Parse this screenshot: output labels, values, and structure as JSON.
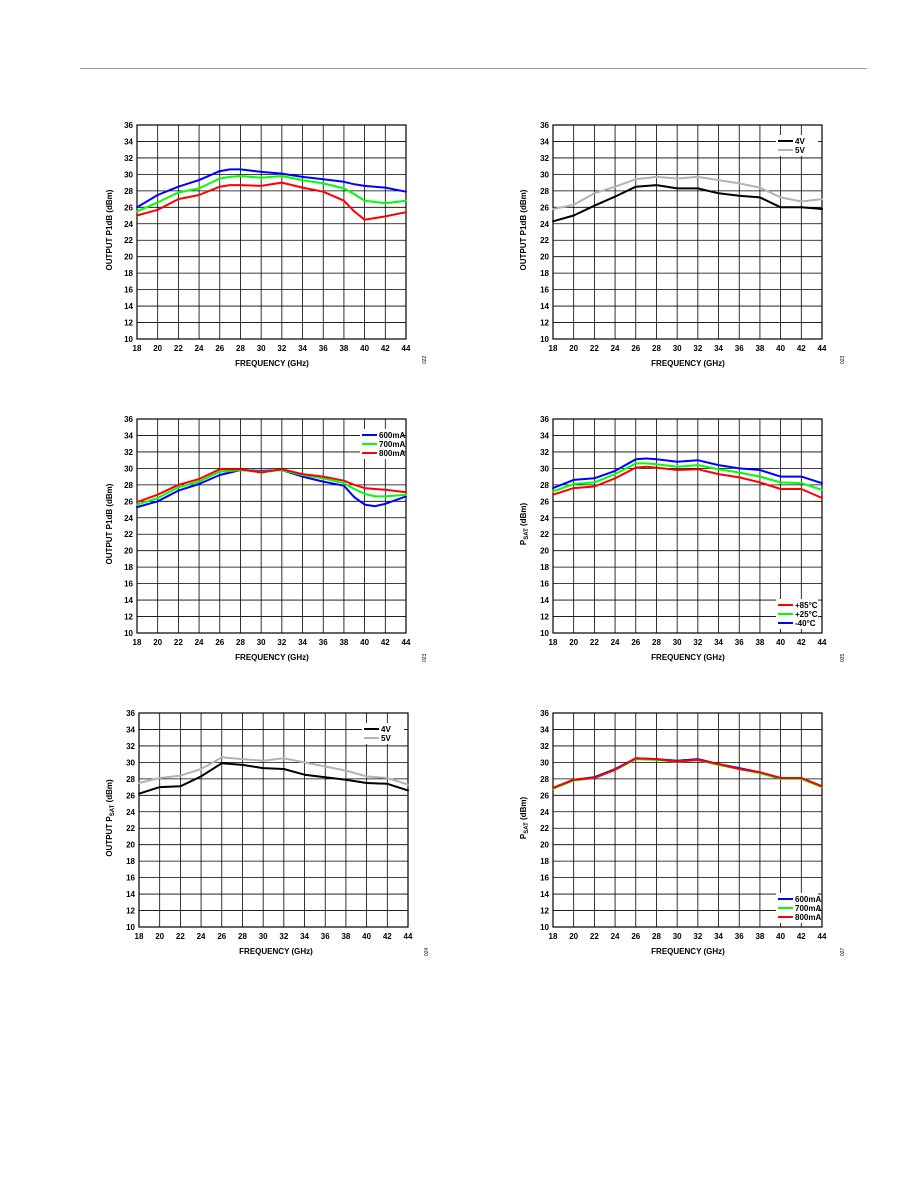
{
  "page": {
    "rule_color": "#9a9a9a"
  },
  "chart_data": [
    {
      "id": "c1",
      "type": "line",
      "xlabel": "FREQUENCY (GHz)",
      "ylabel": "OUTPUT P1dB (dBm)",
      "xlim": [
        18,
        44
      ],
      "ylim": [
        10,
        36
      ],
      "xstep": 2,
      "ystep": 2,
      "grid": true,
      "fig_id": "022",
      "legend": null,
      "x": [
        18,
        20,
        22,
        24,
        26,
        27,
        28,
        30,
        32,
        34,
        36,
        38,
        39,
        40,
        42,
        44
      ],
      "series": [
        {
          "color": "#0000ff",
          "values": [
            26.0,
            27.5,
            28.5,
            29.3,
            30.4,
            30.6,
            30.6,
            30.3,
            30.1,
            29.7,
            29.4,
            29.1,
            28.8,
            28.6,
            28.4,
            27.9
          ]
        },
        {
          "color": "#00ff00",
          "values": [
            25.5,
            26.6,
            27.8,
            28.3,
            29.5,
            29.7,
            29.8,
            29.6,
            29.8,
            29.3,
            28.9,
            28.3,
            27.6,
            26.8,
            26.5,
            26.8
          ]
        },
        {
          "color": "#ff0000",
          "values": [
            25.0,
            25.7,
            27.0,
            27.5,
            28.5,
            28.7,
            28.7,
            28.6,
            29.0,
            28.4,
            27.9,
            26.8,
            25.5,
            24.5,
            24.9,
            25.4
          ]
        }
      ]
    },
    {
      "id": "c2",
      "type": "line",
      "xlabel": "FREQUENCY (GHz)",
      "ylabel": "OUTPUT P1dB (dBm)",
      "xlim": [
        18,
        44
      ],
      "ylim": [
        10,
        36
      ],
      "xstep": 2,
      "ystep": 2,
      "grid": true,
      "fig_id": "023",
      "legend": "top-right",
      "x": [
        18,
        20,
        22,
        24,
        26,
        28,
        30,
        32,
        34,
        36,
        38,
        40,
        42,
        44
      ],
      "series": [
        {
          "name": "4V",
          "color": "#000000",
          "values": [
            24.3,
            25.0,
            26.2,
            27.3,
            28.5,
            28.7,
            28.3,
            28.3,
            27.7,
            27.4,
            27.2,
            26.0,
            26.0,
            25.8
          ]
        },
        {
          "name": "5V",
          "color": "#b3b3b3",
          "values": [
            25.8,
            26.3,
            27.7,
            28.5,
            29.4,
            29.7,
            29.5,
            29.7,
            29.3,
            28.9,
            28.4,
            27.2,
            26.7,
            27.0
          ]
        }
      ]
    },
    {
      "id": "c3",
      "type": "line",
      "xlabel": "FREQUENCY (GHz)",
      "ylabel": "OUTPUT P1dB (dBm)",
      "xlim": [
        18,
        44
      ],
      "ylim": [
        10,
        36
      ],
      "xstep": 2,
      "ystep": 2,
      "grid": true,
      "fig_id": "023",
      "legend": "top-right",
      "x": [
        18,
        20,
        22,
        24,
        26,
        28,
        30,
        32,
        34,
        36,
        38,
        39,
        40,
        41,
        42,
        44
      ],
      "series": [
        {
          "name": "600mA",
          "color": "#0000ff",
          "values": [
            25.3,
            26.0,
            27.3,
            28.1,
            29.2,
            29.8,
            29.7,
            29.8,
            29.0,
            28.4,
            27.9,
            26.5,
            25.6,
            25.4,
            25.7,
            26.6
          ]
        },
        {
          "name": "700mA",
          "color": "#00ff00",
          "values": [
            25.6,
            26.4,
            27.7,
            28.4,
            29.6,
            29.8,
            29.6,
            29.8,
            29.2,
            28.8,
            28.2,
            27.5,
            26.9,
            26.6,
            26.6,
            26.8
          ]
        },
        {
          "name": "800mA",
          "color": "#ff0000",
          "values": [
            25.9,
            26.8,
            28.0,
            28.7,
            29.9,
            29.9,
            29.5,
            29.9,
            29.3,
            29.0,
            28.5,
            28.0,
            27.6,
            27.5,
            27.4,
            27.1
          ]
        }
      ]
    },
    {
      "id": "c4",
      "type": "line",
      "xlabel": "FREQUENCY (GHz)",
      "ylabel": "P_SAT (dBm)",
      "xlim": [
        18,
        44
      ],
      "ylim": [
        10,
        36
      ],
      "xstep": 2,
      "ystep": 2,
      "grid": true,
      "fig_id": "025",
      "legend": "bottom-right",
      "x": [
        18,
        20,
        22,
        24,
        26,
        27,
        28,
        30,
        32,
        34,
        36,
        38,
        40,
        42,
        44
      ],
      "series": [
        {
          "name": "+85°C",
          "color": "#ff0000",
          "values": [
            26.8,
            27.6,
            27.8,
            28.8,
            30.1,
            30.2,
            30.1,
            29.8,
            29.9,
            29.3,
            28.9,
            28.3,
            27.5,
            27.5,
            26.4
          ]
        },
        {
          "name": "+25°C",
          "color": "#00ff00",
          "values": [
            27.2,
            28.1,
            28.3,
            29.3,
            30.6,
            30.6,
            30.5,
            30.2,
            30.4,
            29.9,
            29.5,
            29.0,
            28.3,
            28.2,
            27.4
          ]
        },
        {
          "name": "-40°C",
          "color": "#0000ff",
          "values": [
            27.6,
            28.6,
            28.8,
            29.7,
            31.1,
            31.2,
            31.1,
            30.8,
            31.0,
            30.4,
            30.0,
            29.8,
            29.0,
            29.0,
            28.2
          ]
        }
      ]
    },
    {
      "id": "c5",
      "type": "line",
      "xlabel": "FREQUENCY (GHz)",
      "ylabel": "OUTPUT P_SAT (dBm)",
      "xlim": [
        18,
        44
      ],
      "ylim": [
        10,
        36
      ],
      "xstep": 2,
      "ystep": 2,
      "grid": true,
      "fig_id": "024",
      "legend": "top-right",
      "x": [
        18,
        20,
        22,
        24,
        26,
        28,
        30,
        32,
        34,
        36,
        38,
        40,
        42,
        44
      ],
      "series": [
        {
          "name": "4V",
          "color": "#000000",
          "values": [
            26.2,
            27.0,
            27.1,
            28.3,
            29.9,
            29.7,
            29.3,
            29.2,
            28.5,
            28.2,
            27.9,
            27.5,
            27.4,
            26.6
          ]
        },
        {
          "name": "5V",
          "color": "#b3b3b3",
          "values": [
            27.5,
            28.1,
            28.4,
            29.2,
            30.6,
            30.4,
            30.2,
            30.5,
            30.0,
            29.5,
            29.0,
            28.3,
            28.1,
            27.3
          ]
        }
      ]
    },
    {
      "id": "c6",
      "type": "line",
      "xlabel": "FREQUENCY (GHz)",
      "ylabel": "P_SAT (dBm)",
      "xlim": [
        18,
        44
      ],
      "ylim": [
        10,
        36
      ],
      "xstep": 2,
      "ystep": 2,
      "grid": true,
      "fig_id": "027",
      "legend": "bottom-right",
      "x": [
        18,
        20,
        22,
        24,
        26,
        28,
        30,
        32,
        34,
        36,
        38,
        40,
        42,
        44
      ],
      "series": [
        {
          "name": "600mA",
          "color": "#0000ff",
          "values": [
            26.9,
            27.9,
            28.2,
            29.2,
            30.5,
            30.4,
            30.2,
            30.4,
            29.8,
            29.3,
            28.8,
            28.1,
            28.1,
            27.1
          ]
        },
        {
          "name": "700mA",
          "color": "#00ff00",
          "values": [
            26.8,
            27.8,
            28.1,
            29.1,
            30.4,
            30.3,
            30.1,
            30.3,
            29.7,
            29.2,
            28.7,
            28.0,
            28.0,
            27.0
          ]
        },
        {
          "name": "800mA",
          "color": "#ff0000",
          "values": [
            26.9,
            27.9,
            28.1,
            29.1,
            30.5,
            30.4,
            30.1,
            30.3,
            29.8,
            29.2,
            28.8,
            28.1,
            28.1,
            27.1
          ]
        }
      ]
    }
  ]
}
